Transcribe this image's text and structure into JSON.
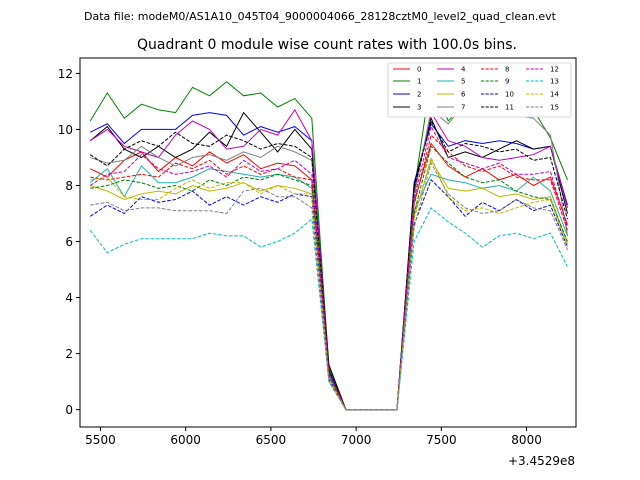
{
  "header": {
    "data_file": "Data file: modeM0/AS1A10_045T04_9000004066_28128cztM0_level2_quad_clean.evt"
  },
  "chart_data": {
    "type": "line",
    "title": "Quadrant 0 module wise count rates with 100.0s bins.",
    "xlabel": "",
    "ylabel": "",
    "x_offset_label": "+3.4529e8",
    "xlim": [
      5380,
      8290
    ],
    "ylim": [
      -0.62,
      12.55
    ],
    "x_ticks": [
      5500,
      6000,
      6500,
      7000,
      7500,
      8000
    ],
    "x_tick_labels": [
      "5500",
      "6000",
      "6500",
      "7000",
      "7500",
      "8000"
    ],
    "y_ticks": [
      0,
      2,
      4,
      6,
      8,
      10,
      12
    ],
    "y_tick_labels": [
      "0",
      "2",
      "4",
      "6",
      "8",
      "10",
      "12"
    ],
    "grid": false,
    "legend_position": "top-right",
    "x": [
      5440,
      5540,
      5640,
      5740,
      5840,
      5940,
      6040,
      6140,
      6240,
      6340,
      6440,
      6540,
      6640,
      6740,
      6840,
      6940,
      7040,
      7140,
      7240,
      7340,
      7440,
      7540,
      7640,
      7740,
      7840,
      7940,
      8040,
      8140,
      8240
    ],
    "series": [
      {
        "name": "0",
        "color": "#ff0000",
        "dash": "solid",
        "values": [
          8.6,
          8.3,
          8.9,
          9.2,
          8.5,
          9.0,
          8.7,
          9.2,
          8.8,
          9.1,
          8.6,
          8.8,
          8.7,
          8.2,
          1.4,
          0,
          0,
          0,
          0,
          7.4,
          9.5,
          8.7,
          8.3,
          8.6,
          8.2,
          8.4,
          8.0,
          8.3,
          6.6
        ]
      },
      {
        "name": "1",
        "color": "#008000",
        "dash": "solid",
        "values": [
          10.3,
          11.3,
          10.4,
          10.9,
          10.7,
          10.6,
          11.5,
          11.2,
          11.7,
          11.2,
          11.3,
          10.8,
          11.1,
          10.4,
          1.5,
          0,
          0,
          0,
          0,
          7.8,
          11.9,
          10.3,
          10.9,
          10.7,
          10.5,
          10.6,
          10.7,
          9.7,
          8.2
        ]
      },
      {
        "name": "2",
        "color": "#0000ff",
        "dash": "solid",
        "values": [
          9.9,
          10.2,
          9.5,
          10.0,
          10.0,
          10.0,
          10.5,
          10.6,
          10.5,
          9.8,
          10.1,
          9.9,
          10.1,
          9.6,
          1.4,
          0,
          0,
          0,
          0,
          8.1,
          10.2,
          9.4,
          9.6,
          9.5,
          9.6,
          9.5,
          9.3,
          9.4,
          7.3
        ]
      },
      {
        "name": "3",
        "color": "#000000",
        "dash": "solid",
        "values": [
          9.6,
          10.1,
          9.3,
          9.0,
          9.4,
          9.0,
          9.3,
          9.9,
          9.4,
          10.6,
          9.9,
          9.2,
          10.0,
          9.3,
          1.6,
          0,
          0,
          0,
          0,
          8.0,
          10.4,
          9.0,
          9.2,
          9.0,
          9.3,
          9.6,
          9.3,
          9.4,
          7.0
        ]
      },
      {
        "name": "4",
        "color": "#c000c0",
        "dash": "solid",
        "values": [
          9.6,
          10.0,
          9.4,
          9.2,
          9.0,
          9.8,
          10.3,
          10.0,
          9.3,
          9.4,
          10.0,
          9.8,
          10.7,
          9.6,
          1.3,
          0,
          0,
          0,
          0,
          7.7,
          10.6,
          9.6,
          9.4,
          9.0,
          8.9,
          9.0,
          9.1,
          9.4,
          7.2
        ]
      },
      {
        "name": "5",
        "color": "#20b2aa",
        "dash": "solid",
        "values": [
          8.1,
          8.6,
          7.6,
          8.7,
          8.1,
          8.1,
          8.3,
          8.6,
          8.5,
          8.4,
          8.3,
          8.4,
          8.3,
          7.9,
          1.2,
          0,
          0,
          0,
          0,
          7.1,
          8.4,
          8.2,
          8.1,
          7.9,
          8.0,
          7.8,
          8.3,
          7.8,
          6.2
        ]
      },
      {
        "name": "6",
        "color": "#bdb700",
        "dash": "solid",
        "values": [
          8.0,
          7.8,
          7.5,
          7.7,
          7.8,
          7.7,
          8.0,
          7.8,
          7.9,
          8.1,
          7.8,
          8.0,
          7.9,
          7.7,
          1.1,
          0,
          0,
          0,
          0,
          6.9,
          8.9,
          7.9,
          7.8,
          7.9,
          7.6,
          7.7,
          7.5,
          7.6,
          5.9
        ]
      },
      {
        "name": "7",
        "color": "#808080",
        "dash": "solid",
        "values": [
          9.0,
          8.8,
          8.9,
          9.4,
          9.0,
          8.7,
          9.0,
          9.1,
          8.9,
          9.2,
          9.0,
          9.4,
          9.2,
          8.9,
          1.3,
          0,
          0,
          0,
          0,
          7.6,
          10.7,
          10.2,
          10.9,
          10.6,
          10.5,
          10.5,
          10.4,
          9.8,
          6.2
        ]
      },
      {
        "name": "8",
        "color": "#ff0000",
        "dash": "dashed",
        "values": [
          8.3,
          8.2,
          8.3,
          8.4,
          8.3,
          8.8,
          8.6,
          8.9,
          8.4,
          8.7,
          8.4,
          8.6,
          8.3,
          8.2,
          1.3,
          0,
          0,
          0,
          0,
          7.3,
          9.8,
          9.2,
          8.7,
          8.5,
          8.7,
          8.3,
          8.2,
          8.2,
          6.4
        ]
      },
      {
        "name": "9",
        "color": "#008000",
        "dash": "dashed",
        "values": [
          7.9,
          8.0,
          8.2,
          8.1,
          7.9,
          8.0,
          7.8,
          8.2,
          8.0,
          8.3,
          8.2,
          8.4,
          8.2,
          8.0,
          1.2,
          0,
          0,
          0,
          0,
          7.0,
          9.4,
          8.8,
          8.3,
          8.1,
          8.2,
          7.8,
          7.6,
          7.5,
          6.0
        ]
      },
      {
        "name": "10",
        "color": "#0000ff",
        "dash": "dashed",
        "values": [
          6.9,
          7.3,
          7.0,
          7.6,
          7.4,
          7.5,
          7.8,
          7.3,
          7.6,
          7.3,
          7.6,
          7.4,
          7.7,
          7.6,
          1.1,
          0,
          0,
          0,
          0,
          6.6,
          8.2,
          7.6,
          6.9,
          7.4,
          7.1,
          7.5,
          7.1,
          7.3,
          5.8
        ]
      },
      {
        "name": "11",
        "color": "#000000",
        "dash": "dashed",
        "values": [
          9.1,
          8.7,
          9.3,
          9.6,
          9.4,
          9.9,
          9.5,
          9.4,
          9.8,
          9.6,
          9.3,
          9.5,
          9.4,
          9.0,
          1.4,
          0,
          0,
          0,
          0,
          7.9,
          10.3,
          9.2,
          9.5,
          9.4,
          9.2,
          9.3,
          8.9,
          9.0,
          6.8
        ]
      },
      {
        "name": "12",
        "color": "#c000c0",
        "dash": "dashed",
        "values": [
          8.0,
          8.4,
          8.5,
          9.1,
          8.6,
          8.4,
          8.5,
          8.7,
          8.3,
          8.9,
          8.5,
          8.6,
          8.9,
          8.4,
          1.3,
          0,
          0,
          0,
          0,
          7.5,
          10.1,
          9.0,
          8.8,
          8.6,
          8.8,
          8.4,
          8.4,
          8.5,
          6.5
        ]
      },
      {
        "name": "13",
        "color": "#00bfbf",
        "dash": "dashed",
        "values": [
          6.4,
          5.6,
          5.9,
          6.1,
          6.1,
          6.1,
          6.1,
          6.3,
          6.2,
          6.2,
          5.8,
          6.0,
          6.3,
          6.8,
          1.0,
          0,
          0,
          0,
          0,
          6.0,
          7.2,
          6.7,
          6.3,
          5.8,
          6.2,
          6.3,
          6.1,
          6.3,
          5.1
        ]
      },
      {
        "name": "14",
        "color": "#bdb700",
        "dash": "dashed",
        "values": [
          8.2,
          8.3,
          7.6,
          7.5,
          7.5,
          7.9,
          8.2,
          7.9,
          8.1,
          8.1,
          7.7,
          8.0,
          7.7,
          7.7,
          1.1,
          0,
          0,
          0,
          0,
          6.8,
          9.0,
          7.6,
          7.1,
          7.2,
          7.0,
          7.2,
          7.4,
          7.5,
          5.8
        ]
      },
      {
        "name": "15",
        "color": "#808080",
        "dash": "dashed",
        "values": [
          7.3,
          7.4,
          7.1,
          7.2,
          7.2,
          7.1,
          7.1,
          7.1,
          7.0,
          7.8,
          7.9,
          7.6,
          7.6,
          7.2,
          1.0,
          0,
          0,
          0,
          0,
          6.5,
          8.8,
          7.7,
          7.2,
          7.0,
          7.1,
          7.5,
          7.2,
          7.1,
          5.7
        ]
      }
    ]
  }
}
